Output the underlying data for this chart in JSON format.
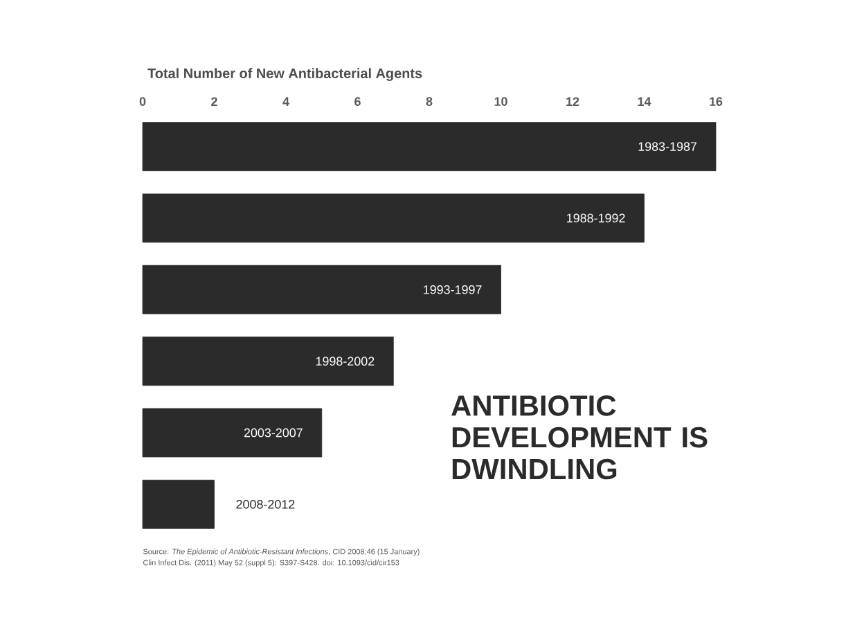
{
  "chart_data": {
    "type": "bar",
    "orientation": "horizontal",
    "title": "Total Number of New Antibacterial Agents",
    "categories": [
      "1983-1987",
      "1988-1992",
      "1993-1997",
      "1998-2002",
      "2003-2007",
      "2008-2012"
    ],
    "values": [
      16,
      14,
      10,
      7,
      5,
      2
    ],
    "color": "#2b2b2b",
    "xlim": [
      0,
      16
    ],
    "xticks": [
      0,
      2,
      4,
      6,
      8,
      10,
      12,
      14,
      16
    ],
    "annotations": [
      "ANTIBIOTIC DEVELOPMENT IS DWINDLING",
      "Source: *The Epidemic of Antibiotic-Resistant Infections*, CID 2008;46 (15 January)",
      "Clin Infect Dis. (2011) May 52 (suppl 5): S397-S428. doi: 10.1093/cid/cir153"
    ]
  }
}
